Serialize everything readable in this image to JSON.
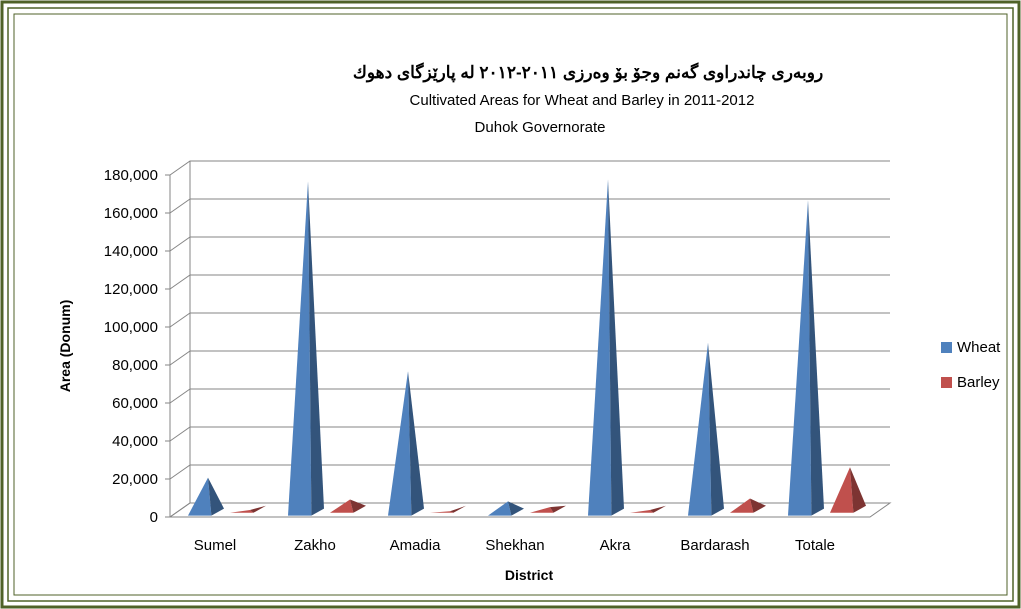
{
  "colors": {
    "border": "#4f6228",
    "wheat": "#4f81bd",
    "barley": "#c0504d",
    "grid": "#868686"
  },
  "chart_data": {
    "type": "bar",
    "shape": "pyramid-3d",
    "title": "روبەری چاندراوی گەنم وجۆ بۆ وەرزی  ٢٠١١-٢٠١٢ لە پارێزگای دهوك",
    "subtitle": "Cultivated Areas for Wheat and Barley in 2011-2012",
    "subtitle2": "Duhok  Governorate",
    "xlabel": "District",
    "ylabel": "Area (Donum)",
    "categories": [
      "Sumel",
      "Zakho",
      "Amadia",
      "Shekhan",
      "Akra",
      "Bardarash",
      "Totale"
    ],
    "series": [
      {
        "name": "Wheat",
        "values": [
          20000,
          176000,
          76000,
          7500,
          177000,
          91000,
          166000
        ]
      },
      {
        "name": "Barley",
        "values": [
          1500,
          7000,
          800,
          3000,
          1500,
          7500,
          24000
        ]
      }
    ],
    "ylim": [
      0,
      180000
    ],
    "yticks": [
      0,
      20000,
      40000,
      60000,
      80000,
      100000,
      120000,
      140000,
      160000,
      180000
    ],
    "ytick_labels": [
      "0",
      "20,000",
      "40,000",
      "60,000",
      "80,000",
      "100,000",
      "120,000",
      "140,000",
      "160,000",
      "180,000"
    ],
    "grid": true,
    "legend": "right"
  }
}
